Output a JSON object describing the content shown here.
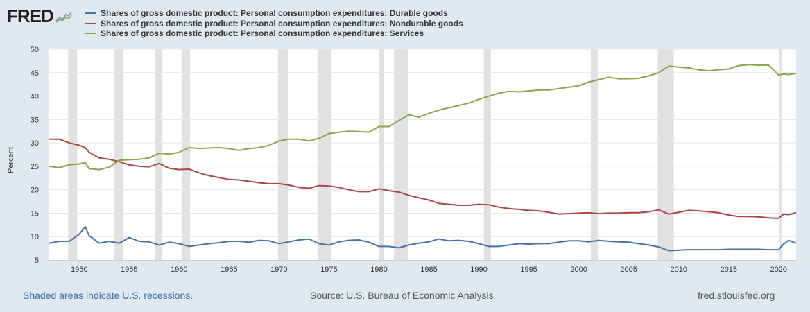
{
  "logo": {
    "text": "FRED",
    "icon": "line-chart-icon"
  },
  "chart_data": {
    "type": "line",
    "title": "",
    "xlabel": "",
    "ylabel": "Percent",
    "ylim": [
      5,
      50
    ],
    "yticks": [
      5,
      10,
      15,
      20,
      25,
      30,
      35,
      40,
      45,
      50
    ],
    "xlim": [
      1947,
      2021.75
    ],
    "xticks": [
      1950,
      1955,
      1960,
      1965,
      1970,
      1975,
      1980,
      1985,
      1990,
      1995,
      2000,
      2005,
      2010,
      2015,
      2020
    ],
    "grid": true,
    "legend_placement": "top",
    "recessions": [
      [
        1948.9,
        1949.8
      ],
      [
        1953.5,
        1954.4
      ],
      [
        1957.6,
        1958.3
      ],
      [
        1960.3,
        1961.1
      ],
      [
        1969.9,
        1970.9
      ],
      [
        1973.9,
        1975.2
      ],
      [
        1980.0,
        1980.5
      ],
      [
        1981.5,
        1982.9
      ],
      [
        1990.5,
        1991.2
      ],
      [
        2001.2,
        2001.9
      ],
      [
        2007.9,
        2009.5
      ],
      [
        2020.1,
        2020.35
      ]
    ],
    "x": [
      1947,
      1948,
      1949,
      1950,
      1950.6,
      1951,
      1952,
      1953,
      1954,
      1955,
      1956,
      1957,
      1958,
      1959,
      1960,
      1961,
      1962,
      1963,
      1964,
      1965,
      1966,
      1967,
      1968,
      1969,
      1970,
      1971,
      1972,
      1973,
      1974,
      1975,
      1976,
      1977,
      1978,
      1979,
      1980,
      1981,
      1982,
      1983,
      1984,
      1985,
      1986,
      1987,
      1988,
      1989,
      1990,
      1991,
      1992,
      1993,
      1994,
      1995,
      1996,
      1997,
      1998,
      1999,
      2000,
      2001,
      2002,
      2003,
      2004,
      2005,
      2006,
      2007,
      2008,
      2009,
      2010,
      2011,
      2012,
      2013,
      2014,
      2015,
      2016,
      2017,
      2018,
      2019,
      2020,
      2020.5,
      2021,
      2021.75
    ],
    "series": [
      {
        "name": "Shares of gross domestic product: Personal consumption expenditures: Durable goods",
        "color": "#4572a7",
        "values": [
          8.6,
          9.0,
          9.0,
          10.5,
          12.1,
          10.2,
          8.6,
          9.0,
          8.6,
          9.8,
          9.0,
          8.9,
          8.2,
          8.8,
          8.5,
          7.9,
          8.2,
          8.5,
          8.7,
          9.0,
          9.0,
          8.8,
          9.2,
          9.1,
          8.5,
          8.9,
          9.3,
          9.5,
          8.5,
          8.2,
          8.9,
          9.2,
          9.3,
          8.8,
          7.9,
          7.9,
          7.6,
          8.2,
          8.6,
          8.9,
          9.5,
          9.1,
          9.2,
          9.0,
          8.5,
          7.9,
          7.9,
          8.2,
          8.5,
          8.4,
          8.5,
          8.5,
          8.8,
          9.1,
          9.1,
          8.9,
          9.2,
          9.0,
          8.9,
          8.8,
          8.5,
          8.2,
          7.8,
          7.0,
          7.1,
          7.2,
          7.2,
          7.2,
          7.2,
          7.3,
          7.3,
          7.3,
          7.3,
          7.2,
          7.2,
          8.4,
          9.2,
          8.6
        ]
      },
      {
        "name": "Shares of gross domestic product: Personal consumption expenditures: Nondurable goods",
        "color": "#aa4643",
        "values": [
          30.8,
          30.8,
          30.0,
          29.5,
          29.0,
          28.0,
          26.8,
          26.5,
          26.0,
          25.3,
          25.0,
          24.9,
          25.6,
          24.6,
          24.3,
          24.4,
          23.6,
          23.0,
          22.6,
          22.2,
          22.1,
          21.8,
          21.5,
          21.3,
          21.3,
          21.0,
          20.5,
          20.3,
          20.9,
          20.8,
          20.5,
          20.0,
          19.6,
          19.6,
          20.2,
          19.8,
          19.5,
          18.8,
          18.3,
          17.8,
          17.1,
          16.9,
          16.7,
          16.7,
          16.9,
          16.8,
          16.3,
          16.0,
          15.8,
          15.6,
          15.5,
          15.2,
          14.8,
          14.9,
          15.0,
          15.1,
          14.9,
          15.0,
          15.0,
          15.1,
          15.1,
          15.3,
          15.7,
          14.8,
          15.2,
          15.6,
          15.5,
          15.3,
          15.1,
          14.6,
          14.3,
          14.3,
          14.2,
          14.0,
          13.9,
          14.8,
          14.7,
          15.1
        ]
      },
      {
        "name": "Shares of gross domestic product: Personal consumption expenditures: Services",
        "color": "#89a54e",
        "values": [
          25.0,
          24.7,
          25.3,
          25.5,
          25.8,
          24.5,
          24.3,
          24.8,
          26.3,
          26.4,
          26.5,
          26.8,
          27.8,
          27.6,
          28.0,
          29.0,
          28.8,
          28.9,
          29.0,
          28.8,
          28.4,
          28.8,
          29.0,
          29.5,
          30.4,
          30.8,
          30.8,
          30.4,
          31.0,
          32.0,
          32.3,
          32.5,
          32.4,
          32.3,
          33.5,
          33.5,
          34.8,
          36.0,
          35.5,
          36.3,
          37.0,
          37.5,
          38.0,
          38.5,
          39.3,
          40.0,
          40.6,
          41.0,
          40.9,
          41.1,
          41.3,
          41.3,
          41.6,
          41.9,
          42.2,
          43.0,
          43.5,
          44.0,
          43.7,
          43.7,
          43.8,
          44.3,
          45.0,
          46.4,
          46.2,
          46.0,
          45.6,
          45.4,
          45.6,
          45.8,
          46.5,
          46.7,
          46.6,
          46.6,
          44.5,
          44.7,
          44.6,
          44.8
        ]
      }
    ]
  },
  "footer": {
    "note": "Shaded areas indicate U.S. recessions.",
    "source": "Source: U.S. Bureau of Economic Analysis",
    "site": "fred.stlouisfed.org"
  }
}
